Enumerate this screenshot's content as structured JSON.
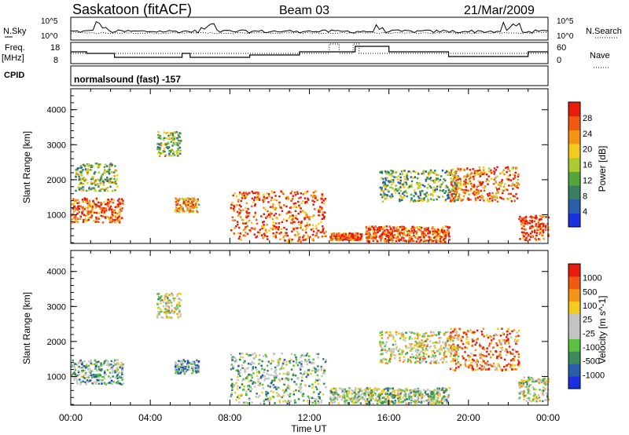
{
  "header": {
    "station": "Saskatoon (fitACF)",
    "beam": "Beam 03",
    "date": "21/Mar/2009"
  },
  "noise_panel": {
    "left_label": "N.Sky",
    "right_label": "N.Search",
    "left_ticks": [
      "10^5",
      "10^0"
    ],
    "right_ticks": [
      "10^5",
      "10^0"
    ]
  },
  "freq_panel": {
    "left_label_line1": "Freq.",
    "left_label_line2": "[MHz]",
    "left_ticks": [
      "18",
      "8"
    ],
    "right_label": "Nave",
    "right_ticks": [
      "60",
      "0"
    ]
  },
  "cpid": {
    "label": "CPID",
    "value": "normalsound (fast) -157"
  },
  "colors": {
    "power_scale": [
      "#1a2fe0",
      "#2b5ea8",
      "#3a7f64",
      "#52a63c",
      "#aacb34",
      "#f2cc1c",
      "#f39416",
      "#f05a10",
      "#e81c0c"
    ],
    "velocity_scale": [
      "#1a2fe0",
      "#2b5ea8",
      "#3a8a5a",
      "#5cc040",
      "#c4c4c4",
      "#c4c4c4",
      "#f2cc1c",
      "#f39416",
      "#f05a10",
      "#e81c0c"
    ]
  },
  "chart_data": [
    {
      "type": "heatmap",
      "title": "",
      "xlabel": "",
      "ylabel": "Slant Range [km]",
      "xlim": [
        "00:00",
        "24:00"
      ],
      "ylim": [
        180,
        4600
      ],
      "x_ticks": [
        "00:00",
        "04:00",
        "08:00",
        "12:00",
        "16:00",
        "20:00",
        "00:00"
      ],
      "y_ticks": [
        "1000",
        "2000",
        "3000",
        "4000"
      ],
      "colorbar": {
        "label": "Power [dB]",
        "ticks": [
          "4",
          "8",
          "12",
          "16",
          "20",
          "24",
          "28"
        ],
        "range": [
          0,
          30
        ]
      },
      "scatter_regions": [
        {
          "t0": 0.0,
          "t1": 2.6,
          "r0": 800,
          "r1": 1500,
          "level": 0.85
        },
        {
          "t0": 0.2,
          "t1": 2.3,
          "r0": 1700,
          "r1": 2500,
          "level": 0.45
        },
        {
          "t0": 4.3,
          "t1": 5.5,
          "r0": 2700,
          "r1": 3400,
          "level": 0.45
        },
        {
          "t0": 5.2,
          "t1": 6.4,
          "r0": 1100,
          "r1": 1500,
          "level": 0.7
        },
        {
          "t0": 8.0,
          "t1": 12.8,
          "r0": 250,
          "r1": 1700,
          "level": 0.85
        },
        {
          "t0": 13.0,
          "t1": 14.6,
          "r0": 300,
          "r1": 500,
          "level": 0.9
        },
        {
          "t0": 14.8,
          "t1": 19.0,
          "r0": 250,
          "r1": 700,
          "level": 0.85
        },
        {
          "t0": 15.5,
          "t1": 19.5,
          "r0": 1400,
          "r1": 2300,
          "level": 0.4
        },
        {
          "t0": 19.0,
          "t1": 22.5,
          "r0": 1400,
          "r1": 2400,
          "level": 0.8
        },
        {
          "t0": 22.5,
          "t1": 24.0,
          "r0": 300,
          "r1": 1000,
          "level": 0.9
        }
      ]
    },
    {
      "type": "heatmap",
      "title": "",
      "xlabel": "Time UT",
      "ylabel": "Slant Range [km]",
      "xlim": [
        "00:00",
        "24:00"
      ],
      "ylim": [
        180,
        4600
      ],
      "x_ticks": [
        "00:00",
        "04:00",
        "08:00",
        "12:00",
        "16:00",
        "20:00",
        "00:00"
      ],
      "y_ticks": [
        "1000",
        "2000",
        "3000",
        "4000"
      ],
      "colorbar": {
        "label": "Velocity [m s^-1]",
        "ticks": [
          "1000",
          "500",
          "100",
          "25",
          "-25",
          "-100",
          "-500",
          "-1000"
        ],
        "range": [
          -1000,
          1000
        ]
      },
      "scatter_regions": [
        {
          "t0": 0.0,
          "t1": 2.6,
          "r0": 800,
          "r1": 1500,
          "level": 0.35
        },
        {
          "t0": 4.3,
          "t1": 5.5,
          "r0": 2700,
          "r1": 3400,
          "level": 0.55
        },
        {
          "t0": 5.2,
          "t1": 6.4,
          "r0": 1100,
          "r1": 1500,
          "level": 0.3
        },
        {
          "t0": 8.0,
          "t1": 12.8,
          "r0": 250,
          "r1": 1700,
          "level": 0.4
        },
        {
          "t0": 13.0,
          "t1": 19.0,
          "r0": 250,
          "r1": 700,
          "level": 0.45
        },
        {
          "t0": 15.5,
          "t1": 19.5,
          "r0": 1400,
          "r1": 2300,
          "level": 0.55
        },
        {
          "t0": 19.0,
          "t1": 22.5,
          "r0": 1200,
          "r1": 2400,
          "level": 0.8
        },
        {
          "t0": 22.5,
          "t1": 24.0,
          "r0": 300,
          "r1": 1000,
          "level": 0.5
        }
      ]
    }
  ]
}
